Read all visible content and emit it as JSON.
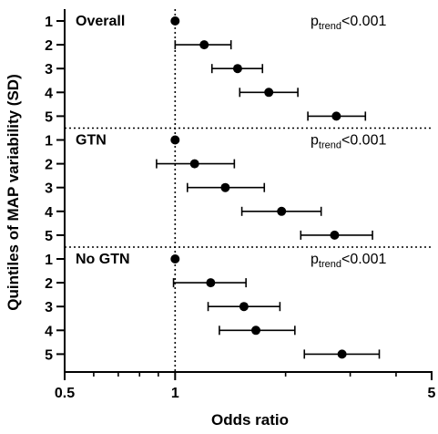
{
  "chart_data": {
    "type": "scatter",
    "subtype": "forest-plot",
    "xlabel": "Odds ratio",
    "ylabel": "Quintiles of MAP variability (SD)",
    "x_scale": "log",
    "xlim": [
      0.5,
      5
    ],
    "x_ticks": [
      {
        "value": 0.5,
        "label": "0.5"
      },
      {
        "value": 1,
        "label": "1"
      },
      {
        "value": 5,
        "label": "5"
      }
    ],
    "reference_line": 1,
    "category_labels": [
      "1",
      "2",
      "3",
      "4",
      "5"
    ],
    "groups": [
      {
        "name": "Overall",
        "p_text": {
          "prefix": "p",
          "sub": "trend",
          "suffix": "<0.001"
        },
        "points": [
          {
            "quintile": "1",
            "or": 1.0,
            "lo": null,
            "hi": null
          },
          {
            "quintile": "2",
            "or": 1.2,
            "lo": 1.0,
            "hi": 1.42
          },
          {
            "quintile": "3",
            "or": 1.48,
            "lo": 1.26,
            "hi": 1.73
          },
          {
            "quintile": "4",
            "or": 1.8,
            "lo": 1.5,
            "hi": 2.16
          },
          {
            "quintile": "5",
            "or": 2.75,
            "lo": 2.3,
            "hi": 3.3
          }
        ]
      },
      {
        "name": "GTN",
        "p_text": {
          "prefix": "p",
          "sub": "trend",
          "suffix": "<0.001"
        },
        "points": [
          {
            "quintile": "1",
            "or": 1.0,
            "lo": null,
            "hi": null
          },
          {
            "quintile": "2",
            "or": 1.13,
            "lo": 0.89,
            "hi": 1.45
          },
          {
            "quintile": "3",
            "or": 1.37,
            "lo": 1.08,
            "hi": 1.75
          },
          {
            "quintile": "4",
            "or": 1.95,
            "lo": 1.52,
            "hi": 2.5
          },
          {
            "quintile": "5",
            "or": 2.72,
            "lo": 2.2,
            "hi": 3.45
          }
        ]
      },
      {
        "name": "No GTN",
        "p_text": {
          "prefix": "p",
          "sub": "trend",
          "suffix": "<0.001"
        },
        "points": [
          {
            "quintile": "1",
            "or": 1.0,
            "lo": null,
            "hi": null
          },
          {
            "quintile": "2",
            "or": 1.25,
            "lo": 0.99,
            "hi": 1.56
          },
          {
            "quintile": "3",
            "or": 1.54,
            "lo": 1.23,
            "hi": 1.93
          },
          {
            "quintile": "4",
            "or": 1.66,
            "lo": 1.32,
            "hi": 2.12
          },
          {
            "quintile": "5",
            "or": 2.85,
            "lo": 2.25,
            "hi": 3.6
          }
        ]
      }
    ]
  }
}
